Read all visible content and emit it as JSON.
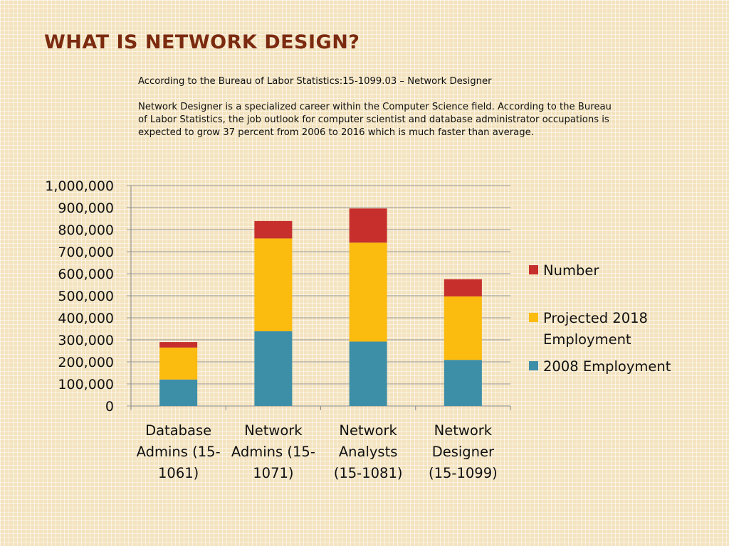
{
  "slide": {
    "title": "WHAT IS NETWORK DESIGN?",
    "source_line": "According to the Bureau of Labor Statistics:15-1099.03 – Network Designer",
    "description": "Network Designer is a specialized career within the Computer Science field. According to the Bureau of Labor Statistics, the job outlook for computer scientist and database administrator occupations is expected to grow 37 percent from 2006 to 2016 which is much faster than average."
  },
  "chart_data": {
    "type": "bar",
    "stacked": true,
    "categories": [
      [
        "Database",
        "Admins (15-",
        "1061)"
      ],
      [
        "Network",
        "Admins (15-",
        "1071)"
      ],
      [
        "Network",
        "Analysts",
        "(15-1081)"
      ],
      [
        "Network",
        "Designer",
        "(15-1099)"
      ]
    ],
    "series": [
      {
        "name": "2008 Employment",
        "color": "#3d8fa8",
        "values": [
          120000,
          339000,
          292000,
          209000
        ]
      },
      {
        "name": "Projected 2018 Employment",
        "color": "#fbbb0f",
        "values": [
          145000,
          421000,
          449000,
          288000
        ]
      },
      {
        "name": "Number",
        "color": "#c62f2c",
        "values": [
          25000,
          79000,
          155000,
          78000
        ]
      }
    ],
    "legend": [
      {
        "series": "Number",
        "lines": [
          "Number"
        ]
      },
      {
        "series": "Projected 2018 Employment",
        "lines": [
          "Projected 2018",
          "Employment"
        ]
      },
      {
        "series": "2008 Employment",
        "lines": [
          "2008 Employment"
        ]
      }
    ],
    "legend_position": "right",
    "y_ticks": [
      "0",
      "100,000",
      "200,000",
      "300,000",
      "400,000",
      "500,000",
      "600,000",
      "700,000",
      "800,000",
      "900,000",
      "1,000,000"
    ],
    "ylim": [
      0,
      1000000
    ],
    "grid": true
  }
}
